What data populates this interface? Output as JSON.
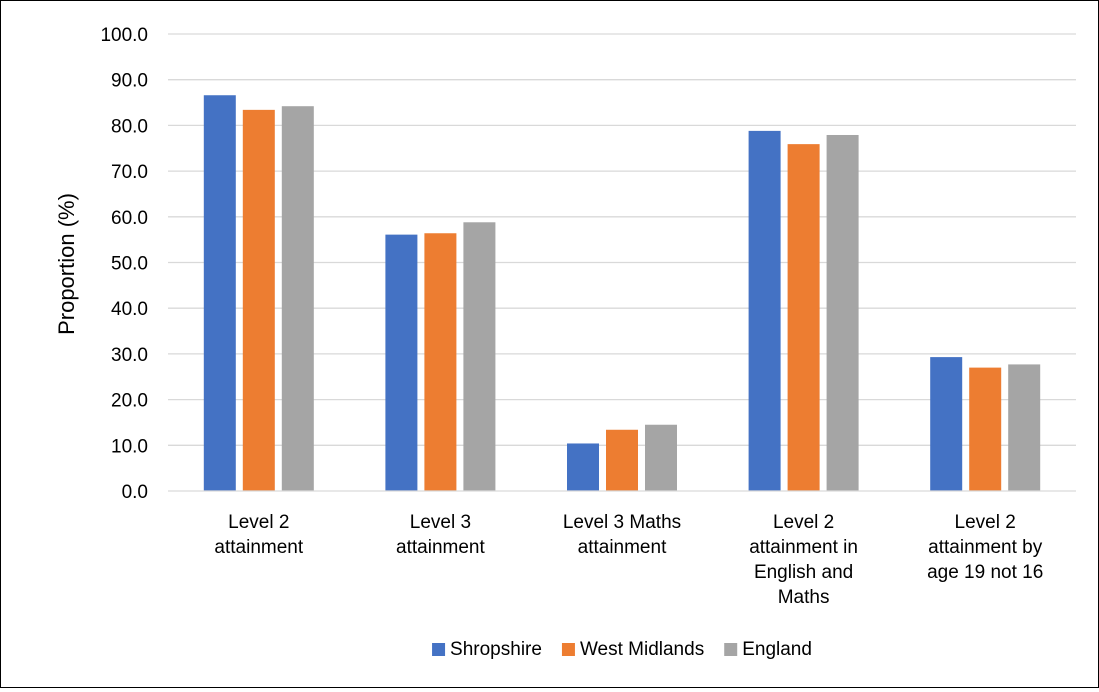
{
  "chart_data": {
    "type": "bar",
    "title": "",
    "xlabel": "",
    "ylabel": "Proportion (%)",
    "ylim": [
      0,
      100
    ],
    "yticks": [
      "0.0",
      "10.0",
      "20.0",
      "30.0",
      "40.0",
      "50.0",
      "60.0",
      "70.0",
      "80.0",
      "90.0",
      "100.0"
    ],
    "grid": true,
    "legend_position": "bottom",
    "categories": [
      [
        "Level 2",
        "attainment"
      ],
      [
        "Level 3",
        "attainment"
      ],
      [
        "Level 3 Maths",
        "attainment"
      ],
      [
        "Level 2",
        "attainment in",
        "English and",
        "Maths"
      ],
      [
        "Level 2",
        "attainment by",
        "age 19 not 16"
      ]
    ],
    "series": [
      {
        "name": "Shropshire",
        "color": "#4472C4",
        "values": [
          86.6,
          56.1,
          10.4,
          78.8,
          29.3
        ]
      },
      {
        "name": "West Midlands",
        "color": "#ED7D31",
        "values": [
          83.4,
          56.4,
          13.4,
          75.9,
          27.0
        ]
      },
      {
        "name": "England",
        "color": "#A5A5A5",
        "values": [
          84.2,
          58.8,
          14.5,
          77.9,
          27.7
        ]
      }
    ]
  }
}
